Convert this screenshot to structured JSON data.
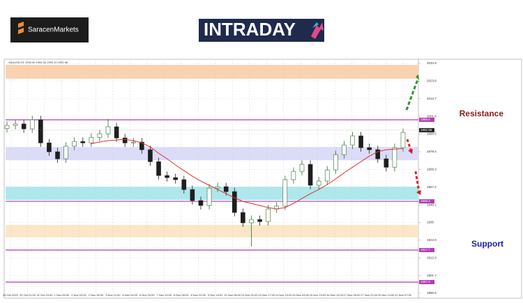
{
  "header": {
    "brand": "SaracenMarkets",
    "logo_left": "INTRA",
    "logo_right": "DAY"
  },
  "chart_data": {
    "type": "candlestick",
    "title": "XAUUSD,H1 1993.40 1994.34 1992.10 1992.98",
    "time_labels": [
      "26 Oct 2023",
      "30 Oct 21:00",
      "31 Oct 15:00",
      "1 Nov 09:00",
      "2 Nov 03:00",
      "2 Nov 18:00",
      "3 Nov 11:00",
      "6 Nov 04:00",
      "6 Nov 20:00",
      "7 Nov 13:00",
      "8 Nov 06:00",
      "8 Nov 22:00",
      "9 Nov 15:00",
      "10 Nov 08:00",
      "13 Nov 01:00",
      "13 Nov 17:00",
      "14 Nov 10:00",
      "15 Nov 03:00",
      "15 Nov 19:00",
      "16 Nov 12:00",
      "17 Nov 05:00",
      "17 Nov 21:00",
      "20 Nov 14:00",
      "21 Nov 07:00"
    ],
    "open": [
      1994.0,
      1996.0,
      1996.9,
      1993.8,
      1999.5,
      1985.0,
      1979.4,
      1975.0,
      1982.9,
      1985.9,
      1985.0,
      1988.5,
      1990.7,
      1995.1,
      1988.1,
      1985.0,
      1985.5,
      1980.7,
      1973.2,
      1964.5,
      1963.2,
      1961.9,
      1955.7,
      1948.8,
      1945.7,
      1956.6,
      1957.5,
      1954.4,
      1941.3,
      1934.8,
      1936.9,
      1935.6,
      1943.5,
      1945.3,
      1961.9,
      1967.1,
      1971.5,
      1958.4,
      1961.0,
      1968.0,
      1977.6,
      1983.7,
      1989.4,
      1982.0,
      1980.7,
      1975.0,
      1969.7,
      1982.0
    ],
    "high": [
      1998.5,
      1999.4,
      1999.4,
      2002.0,
      2002.0,
      1987.5,
      1981.9,
      1985.4,
      1988.4,
      1988.4,
      1991.0,
      1993.2,
      2000.0,
      1997.6,
      1990.6,
      1988.0,
      1988.0,
      1983.2,
      1975.7,
      1967.0,
      1965.7,
      1964.4,
      1958.2,
      1951.3,
      1959.1,
      1960.0,
      1960.0,
      1956.9,
      1943.8,
      1939.4,
      1939.4,
      1946.0,
      1947.8,
      1964.4,
      1969.6,
      1974.0,
      1974.0,
      1963.5,
      1970.5,
      1980.1,
      1986.2,
      1991.9,
      1991.9,
      1984.5,
      1983.2,
      1977.5,
      1984.5,
      1994.1
    ],
    "low": [
      1991.5,
      1993.5,
      1991.3,
      1991.3,
      1982.5,
      1976.9,
      1972.5,
      1972.5,
      1980.4,
      1982.5,
      1982.5,
      1986.0,
      1988.2,
      1985.6,
      1982.5,
      1982.5,
      1978.2,
      1970.7,
      1962.0,
      1960.7,
      1959.4,
      1953.2,
      1946.3,
      1943.2,
      1943.2,
      1954.1,
      1951.9,
      1938.8,
      1932.3,
      1920.0,
      1933.1,
      1933.1,
      1941.0,
      1942.8,
      1959.4,
      1964.6,
      1955.9,
      1955.9,
      1958.5,
      1965.5,
      1975.1,
      1981.2,
      1979.5,
      1978.2,
      1972.5,
      1967.2,
      1967.2,
      1979.5
    ],
    "close": [
      1996.0,
      1996.9,
      1993.8,
      1999.5,
      1985.0,
      1979.4,
      1975.0,
      1982.9,
      1985.9,
      1985.0,
      1988.5,
      1990.7,
      1995.1,
      1988.1,
      1985.0,
      1985.5,
      1980.7,
      1973.2,
      1964.5,
      1963.2,
      1961.9,
      1955.7,
      1948.8,
      1945.7,
      1956.6,
      1957.5,
      1954.4,
      1941.3,
      1934.8,
      1936.9,
      1935.6,
      1943.5,
      1945.3,
      1961.9,
      1967.1,
      1971.5,
      1958.4,
      1961.0,
      1968.0,
      1977.6,
      1983.7,
      1989.4,
      1982.0,
      1980.7,
      1975.0,
      1969.7,
      1982.0,
      1991.6
    ],
    "up_color": "#2e6b2e",
    "down_color": "#1e1e1e",
    "ma": {
      "color": "#e0302a",
      "values": [
        null,
        null,
        null,
        null,
        null,
        null,
        null,
        null,
        null,
        null,
        1984.6,
        1985.5,
        1986.4,
        1986.8,
        1987.2,
        1986.4,
        1985.0,
        1982.4,
        1978.5,
        1975.0,
        1971.1,
        1967.6,
        1964.1,
        1961.0,
        1958.4,
        1955.7,
        1953.1,
        1950.5,
        1948.3,
        1947.0,
        1945.7,
        1944.4,
        1943.5,
        1944.4,
        1947.0,
        1950.1,
        1953.1,
        1955.7,
        1958.8,
        1962.3,
        1966.2,
        1969.7,
        1973.2,
        1976.7,
        1979.4,
        1980.7,
        1981.1,
        1981.5
      ]
    },
    "ylim": [
      1888.85,
      2037.1
    ],
    "yticks": [
      2034.9,
      2023.8,
      2012.7,
      2001.6,
      1990.5,
      1979.4,
      1968.3,
      1957.2,
      1946.1,
      1935.0,
      1923.9,
      1912.8,
      1901.7,
      1890.6
    ],
    "zones": [
      {
        "range": [
          2025.3,
          2034.0
        ],
        "color": "#fbd2b0"
      },
      {
        "range": [
          1974.1,
          1982.4
        ],
        "color": "#dcdcf8"
      },
      {
        "range": [
          1949.2,
          1957.5
        ],
        "color": "#aee8ec"
      },
      {
        "range": [
          1925.6,
          1933.5
        ],
        "color": "#fde6c8"
      }
    ],
    "levels": [
      {
        "value": 1999.5,
        "color": "#b23cb2",
        "label": "Resistance",
        "label_color": "#8b1a1a"
      },
      {
        "value": 1948.3,
        "color": "#b23cb2"
      },
      {
        "value": 1917.7,
        "color": "#b23cb2",
        "label": "Support",
        "label_color": "#1a1ab0"
      },
      {
        "value": 1897.6,
        "color": "#b23cb2"
      }
    ],
    "last_price": 1992.98,
    "grid": true
  }
}
